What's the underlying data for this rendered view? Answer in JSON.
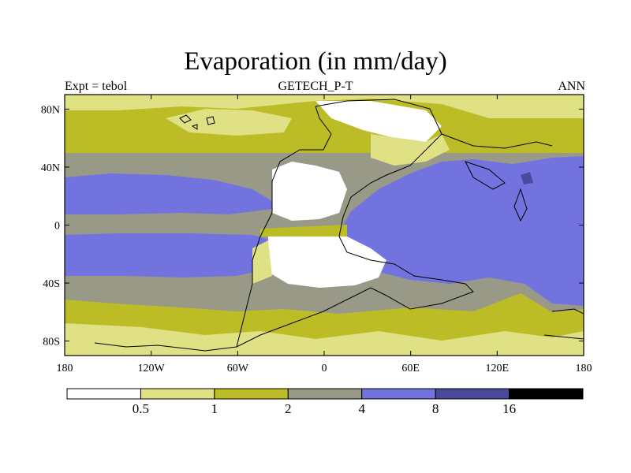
{
  "title": "Evaporation (in mm/day)",
  "subtitle_left": "Expt = tebol",
  "subtitle_center": "GETECH_P-T",
  "subtitle_right": "ANN",
  "chart_data": {
    "type": "heatmap",
    "variable": "Evaporation",
    "units": "mm/day",
    "projection": "cylindrical equidistant",
    "x_ticks": [
      {
        "value": -180,
        "label": "180"
      },
      {
        "value": -120,
        "label": "120W"
      },
      {
        "value": -60,
        "label": "60W"
      },
      {
        "value": 0,
        "label": "0"
      },
      {
        "value": 60,
        "label": "60E"
      },
      {
        "value": 120,
        "label": "120E"
      },
      {
        "value": 180,
        "label": "180"
      }
    ],
    "y_ticks": [
      {
        "value": 80,
        "label": "80N"
      },
      {
        "value": 40,
        "label": "40N"
      },
      {
        "value": 0,
        "label": "0"
      },
      {
        "value": -40,
        "label": "40S"
      },
      {
        "value": -80,
        "label": "80S"
      }
    ],
    "xlim": [
      -180,
      180
    ],
    "ylim": [
      -90,
      90
    ],
    "contour_levels": [
      0.5,
      1,
      2,
      4,
      8,
      16
    ],
    "legend_bins": [
      {
        "range": "< 0.5",
        "color": "#ffffff"
      },
      {
        "range": "0.5 - 1",
        "color": "#e0e084"
      },
      {
        "range": "1 - 2",
        "color": "#bcbc26"
      },
      {
        "range": "2 - 4",
        "color": "#999988"
      },
      {
        "range": "4 - 8",
        "color": "#7373e0"
      },
      {
        "range": "8 - 16",
        "color": "#4a4a9c"
      },
      {
        "range": "> 16",
        "color": "#000000"
      }
    ],
    "legend_labels": [
      "0.5",
      "1",
      "2",
      "4",
      "8",
      "16"
    ],
    "colors": {
      "lt05": "#ffffff",
      "b05_1": "#e0e084",
      "b1_2": "#bcbc26",
      "b2_4": "#999988",
      "b4_8": "#7373e0",
      "b8_16": "#4a4a9c",
      "gt16": "#000000"
    }
  }
}
